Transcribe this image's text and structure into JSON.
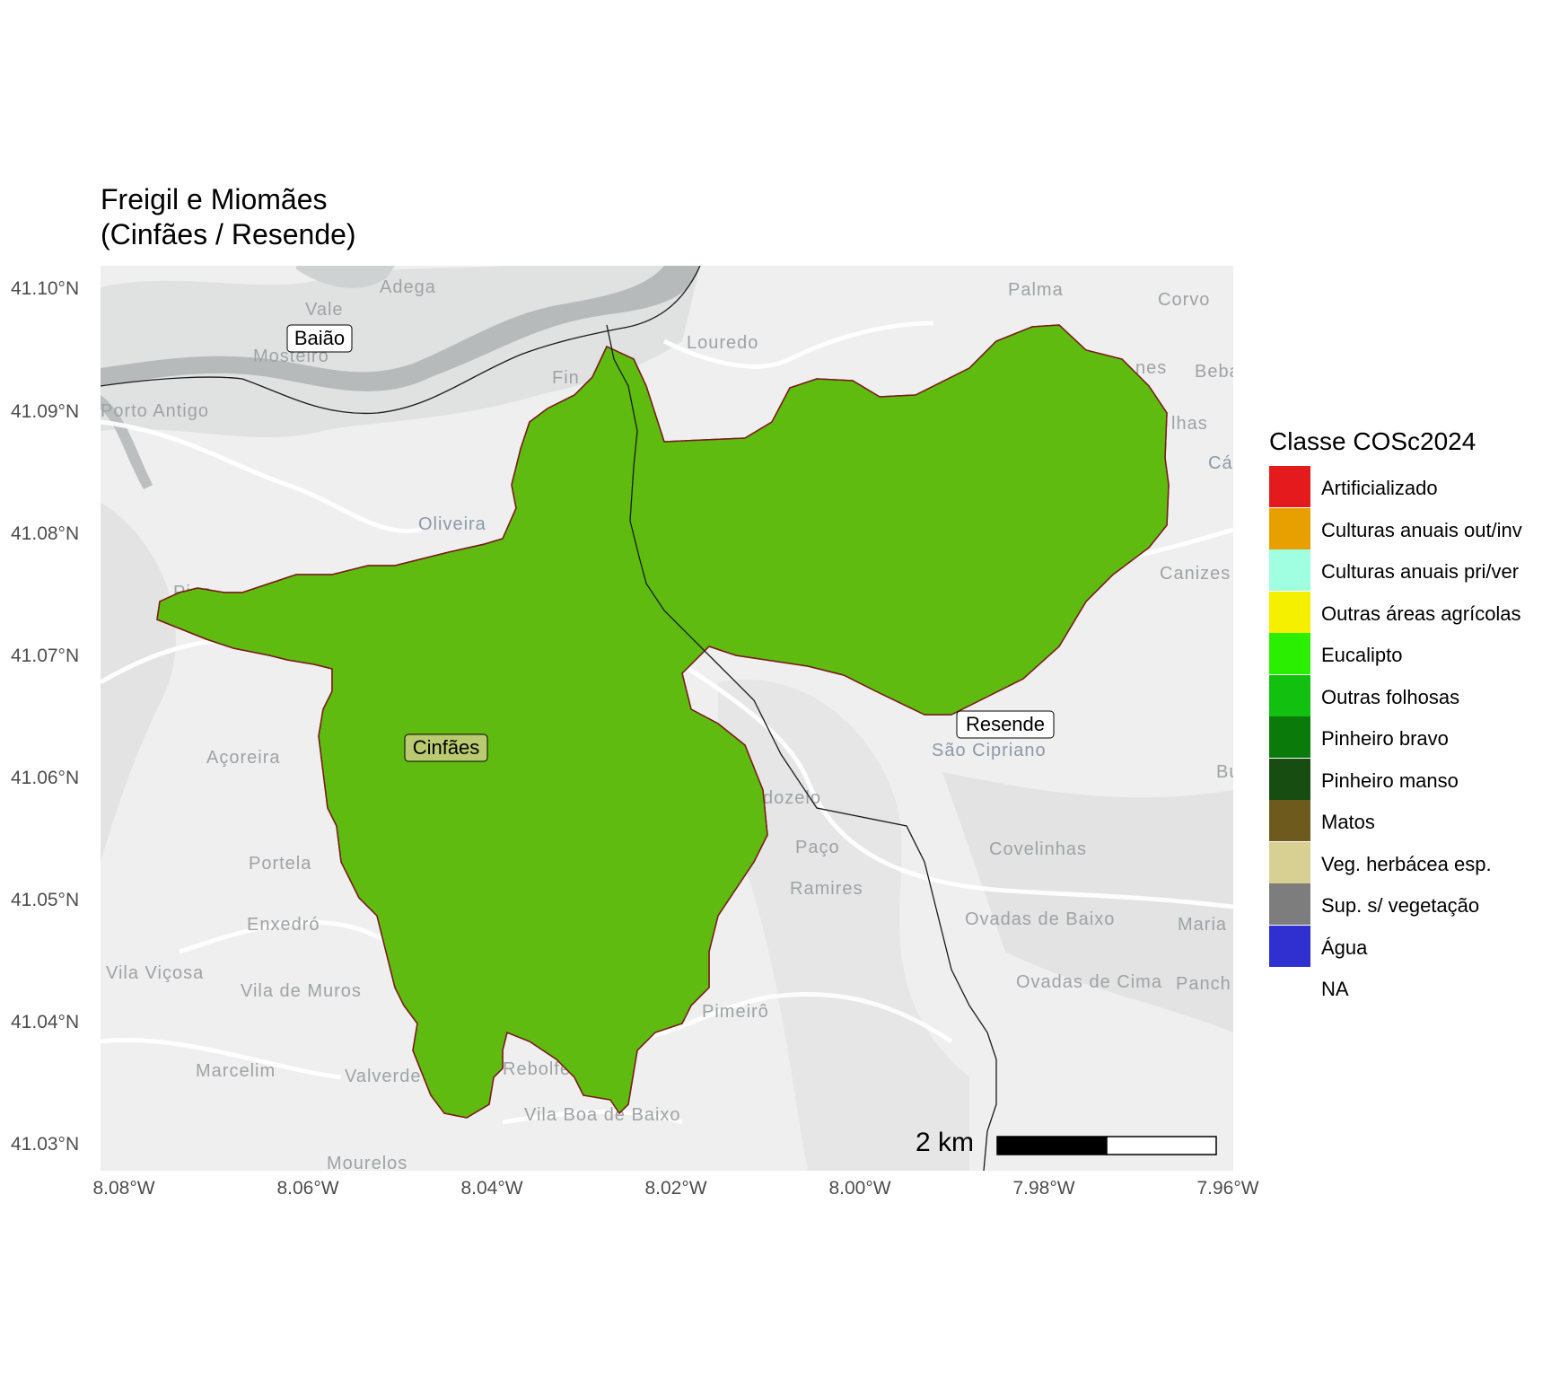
{
  "title_line1": "Freigil e Miomães",
  "title_line2": "(Cinfães / Resende)",
  "chart_data": {
    "type": "map",
    "title": "Freigil e Miomães (Cinfães / Resende)",
    "x_axis": {
      "labels": [
        "8.08°W",
        "8.06°W",
        "8.04°W",
        "8.02°W",
        "8.00°W",
        "7.98°W",
        "7.96°W"
      ],
      "range": [
        -8.08,
        -7.96
      ]
    },
    "y_axis": {
      "labels": [
        "41.10°N",
        "41.09°N",
        "41.08°N",
        "41.07°N",
        "41.06°N",
        "41.05°N",
        "41.04°N",
        "41.03°N"
      ],
      "range": [
        41.03,
        41.1
      ]
    },
    "grid": false
  },
  "place_labels": {
    "boxed": [
      "Baião",
      "Cinfães",
      "Resende"
    ],
    "basemap": [
      "Vale",
      "Adega",
      "Palma",
      "Corvo",
      "Mosteiro",
      "Louredo",
      "Porto Antigo",
      "Oliveira",
      "Pias",
      "Canizes",
      "Açoreira",
      "São Cipriano",
      "Portela",
      "Paço",
      "Covelinhas",
      "Ramires",
      "Enxedró",
      "Ovadas de Baixo",
      "Maria",
      "Vila Viçosa",
      "Vila de Muros",
      "Ovadas de Cima",
      "Panch",
      "Pimeirô",
      "Marcelim",
      "Valverde",
      "Rebolfe",
      "Vila Boa de Baixo",
      "Mourelos",
      "dozelo",
      "Fin",
      "Beba",
      "Cár",
      "nes",
      "lhas",
      "Bu"
    ]
  },
  "legend": {
    "title": "Classe COSc2024",
    "items": [
      {
        "label": "Artificializado",
        "color": "#e41a1c"
      },
      {
        "label": "Culturas anuais out/inv",
        "color": "#e8a000"
      },
      {
        "label": "Culturas anuais pri/ver",
        "color": "#a0ffe0"
      },
      {
        "label": "Outras áreas agrícolas",
        "color": "#f5f000"
      },
      {
        "label": "Eucalipto",
        "color": "#2af000"
      },
      {
        "label": "Outras folhosas",
        "color": "#12c010"
      },
      {
        "label": "Pinheiro bravo",
        "color": "#0a7a0a"
      },
      {
        "label": "Pinheiro manso",
        "color": "#184d12"
      },
      {
        "label": "Matos",
        "color": "#6e5a1c"
      },
      {
        "label": "Veg. herbácea esp.",
        "color": "#d8cf92"
      },
      {
        "label": "Sup. s/ vegetação",
        "color": "#7d7d7d"
      },
      {
        "label": "Água",
        "color": "#3030d0"
      },
      {
        "label": "NA",
        "color": ""
      }
    ]
  },
  "scale_bar": {
    "label": "2 km"
  }
}
